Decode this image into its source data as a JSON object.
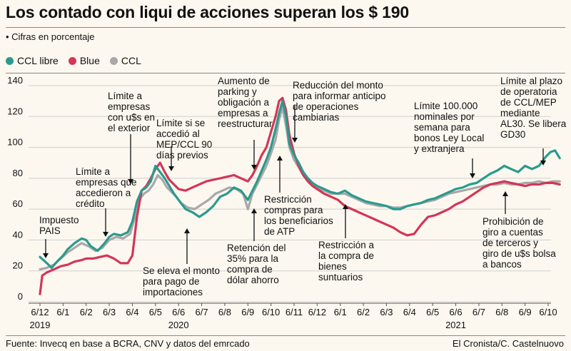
{
  "title": "Los contado con liqui de acciones superan los $ 190",
  "subtitle": "• Cifras en porcentaje",
  "legend": [
    {
      "name": "CCL libre",
      "color": "#2a9a8e"
    },
    {
      "name": "Blue",
      "color": "#d43558"
    },
    {
      "name": "CCL",
      "color": "#a8a8a8"
    }
  ],
  "footer": {
    "source": "Fuente: Invecq en base a BCRA, CNV y datos del emrcado",
    "credit": "El Cronista/C. Castelnuovo"
  },
  "chart_data": {
    "type": "line",
    "title": "Los contado con liqui de acciones superan los $ 190",
    "xlabel": "",
    "ylabel": "Cifras en porcentaje",
    "ylim": [
      0,
      140
    ],
    "yticks": [
      0,
      20,
      40,
      60,
      80,
      100,
      120,
      140
    ],
    "categories": [
      "6/12",
      "6/1",
      "6/2",
      "6/3",
      "6/4",
      "6/5",
      "6/6",
      "6/7",
      "6/8",
      "6/9",
      "6/10",
      "6/11",
      "6/12",
      "6/1",
      "6/2",
      "6/3",
      "6/4",
      "6/5",
      "6/6",
      "6/7",
      "6/8",
      "6/9",
      "6/10"
    ],
    "years": [
      {
        "label": "2019",
        "index": 0
      },
      {
        "label": "2020",
        "index": 6
      },
      {
        "label": "2021",
        "index": 18
      }
    ],
    "series": [
      {
        "name": "CCL libre",
        "color": "#2a9a8e",
        "points": [
          [
            0,
            29
          ],
          [
            0.3,
            25
          ],
          [
            0.5,
            22
          ],
          [
            0.8,
            27
          ],
          [
            1.0,
            30
          ],
          [
            1.2,
            34
          ],
          [
            1.5,
            38
          ],
          [
            1.8,
            41
          ],
          [
            2.0,
            40
          ],
          [
            2.2,
            36
          ],
          [
            2.5,
            33
          ],
          [
            2.8,
            38
          ],
          [
            3.0,
            42
          ],
          [
            3.2,
            44
          ],
          [
            3.5,
            43
          ],
          [
            3.8,
            45
          ],
          [
            4.0,
            52
          ],
          [
            4.2,
            65
          ],
          [
            4.4,
            72
          ],
          [
            4.6,
            74
          ],
          [
            4.8,
            78
          ],
          [
            5.0,
            88
          ],
          [
            5.2,
            84
          ],
          [
            5.4,
            80
          ],
          [
            5.6,
            75
          ],
          [
            5.8,
            70
          ],
          [
            6.0,
            66
          ],
          [
            6.3,
            60
          ],
          [
            6.6,
            58
          ],
          [
            6.9,
            55
          ],
          [
            7.2,
            58
          ],
          [
            7.5,
            62
          ],
          [
            7.8,
            68
          ],
          [
            8.1,
            70
          ],
          [
            8.4,
            74
          ],
          [
            8.7,
            72
          ],
          [
            9.0,
            66
          ],
          [
            9.2,
            72
          ],
          [
            9.4,
            78
          ],
          [
            9.6,
            85
          ],
          [
            9.8,
            92
          ],
          [
            10.0,
            100
          ],
          [
            10.2,
            112
          ],
          [
            10.35,
            122
          ],
          [
            10.5,
            130
          ],
          [
            10.65,
            120
          ],
          [
            10.8,
            102
          ],
          [
            11.0,
            95
          ],
          [
            11.2,
            90
          ],
          [
            11.4,
            84
          ],
          [
            11.6,
            80
          ],
          [
            11.8,
            77
          ],
          [
            12.0,
            75
          ],
          [
            12.3,
            73
          ],
          [
            12.6,
            71
          ],
          [
            12.9,
            70
          ],
          [
            13.2,
            72
          ],
          [
            13.5,
            69
          ],
          [
            13.8,
            67
          ],
          [
            14.1,
            65
          ],
          [
            14.4,
            64
          ],
          [
            14.7,
            63
          ],
          [
            15.0,
            62
          ],
          [
            15.3,
            60
          ],
          [
            15.6,
            60
          ],
          [
            15.9,
            62
          ],
          [
            16.2,
            63
          ],
          [
            16.5,
            64
          ],
          [
            16.8,
            66
          ],
          [
            17.1,
            67
          ],
          [
            17.4,
            69
          ],
          [
            17.7,
            71
          ],
          [
            18.0,
            73
          ],
          [
            18.3,
            74
          ],
          [
            18.6,
            76
          ],
          [
            18.9,
            77
          ],
          [
            19.2,
            80
          ],
          [
            19.5,
            83
          ],
          [
            19.8,
            85
          ],
          [
            20.1,
            88
          ],
          [
            20.4,
            86
          ],
          [
            20.7,
            84
          ],
          [
            21.0,
            88
          ],
          [
            21.3,
            86
          ],
          [
            21.6,
            88
          ],
          [
            21.9,
            94
          ],
          [
            22.1,
            97
          ],
          [
            22.3,
            98
          ],
          [
            22.5,
            93
          ]
        ]
      },
      {
        "name": "Blue",
        "color": "#d43558",
        "points": [
          [
            0,
            5
          ],
          [
            0.1,
            17
          ],
          [
            0.3,
            19
          ],
          [
            0.6,
            21
          ],
          [
            0.9,
            23
          ],
          [
            1.2,
            24
          ],
          [
            1.5,
            26
          ],
          [
            1.8,
            27
          ],
          [
            2.0,
            28
          ],
          [
            2.3,
            28
          ],
          [
            2.6,
            29
          ],
          [
            2.9,
            30
          ],
          [
            3.2,
            28
          ],
          [
            3.5,
            25
          ],
          [
            3.8,
            25
          ],
          [
            4.0,
            30
          ],
          [
            4.2,
            55
          ],
          [
            4.4,
            72
          ],
          [
            4.6,
            75
          ],
          [
            4.8,
            80
          ],
          [
            5.0,
            86
          ],
          [
            5.2,
            90
          ],
          [
            5.4,
            84
          ],
          [
            5.6,
            79
          ],
          [
            5.8,
            76
          ],
          [
            6.0,
            73
          ],
          [
            6.3,
            72
          ],
          [
            6.6,
            74
          ],
          [
            6.9,
            76
          ],
          [
            7.2,
            78
          ],
          [
            7.5,
            79
          ],
          [
            7.8,
            80
          ],
          [
            8.1,
            81
          ],
          [
            8.4,
            82
          ],
          [
            8.7,
            80
          ],
          [
            9.0,
            78
          ],
          [
            9.2,
            82
          ],
          [
            9.4,
            88
          ],
          [
            9.6,
            95
          ],
          [
            9.8,
            100
          ],
          [
            10.0,
            110
          ],
          [
            10.2,
            120
          ],
          [
            10.35,
            130
          ],
          [
            10.5,
            132
          ],
          [
            10.65,
            124
          ],
          [
            10.8,
            108
          ],
          [
            11.0,
            96
          ],
          [
            11.2,
            88
          ],
          [
            11.4,
            82
          ],
          [
            11.6,
            78
          ],
          [
            11.8,
            75
          ],
          [
            12.0,
            73
          ],
          [
            12.3,
            70
          ],
          [
            12.6,
            68
          ],
          [
            12.9,
            66
          ],
          [
            13.2,
            62
          ],
          [
            13.5,
            60
          ],
          [
            13.8,
            58
          ],
          [
            14.1,
            56
          ],
          [
            14.4,
            54
          ],
          [
            14.7,
            52
          ],
          [
            15.0,
            50
          ],
          [
            15.3,
            48
          ],
          [
            15.6,
            45
          ],
          [
            15.9,
            43
          ],
          [
            16.2,
            44
          ],
          [
            16.5,
            50
          ],
          [
            16.8,
            55
          ],
          [
            17.1,
            56
          ],
          [
            17.4,
            58
          ],
          [
            17.7,
            60
          ],
          [
            18.0,
            63
          ],
          [
            18.3,
            65
          ],
          [
            18.6,
            68
          ],
          [
            18.9,
            71
          ],
          [
            19.2,
            74
          ],
          [
            19.5,
            76
          ],
          [
            19.8,
            77
          ],
          [
            20.1,
            78
          ],
          [
            20.4,
            77
          ],
          [
            20.7,
            76
          ],
          [
            21.0,
            75
          ],
          [
            21.3,
            76
          ],
          [
            21.6,
            76
          ],
          [
            21.9,
            77
          ],
          [
            22.2,
            77
          ],
          [
            22.5,
            76
          ]
        ]
      },
      {
        "name": "CCL",
        "color": "#a8a8a8",
        "points": [
          [
            0,
            21
          ],
          [
            0.3,
            22
          ],
          [
            0.6,
            24
          ],
          [
            0.9,
            28
          ],
          [
            1.2,
            32
          ],
          [
            1.5,
            35
          ],
          [
            1.8,
            38
          ],
          [
            2.1,
            36
          ],
          [
            2.4,
            33
          ],
          [
            2.7,
            35
          ],
          [
            3.0,
            40
          ],
          [
            3.3,
            42
          ],
          [
            3.6,
            41
          ],
          [
            3.9,
            44
          ],
          [
            4.1,
            54
          ],
          [
            4.3,
            66
          ],
          [
            4.5,
            70
          ],
          [
            4.7,
            72
          ],
          [
            4.9,
            76
          ],
          [
            5.1,
            82
          ],
          [
            5.3,
            79
          ],
          [
            5.5,
            74
          ],
          [
            5.7,
            71
          ],
          [
            5.9,
            68
          ],
          [
            6.1,
            64
          ],
          [
            6.4,
            61
          ],
          [
            6.7,
            60
          ],
          [
            7.0,
            63
          ],
          [
            7.3,
            66
          ],
          [
            7.6,
            70
          ],
          [
            7.9,
            72
          ],
          [
            8.2,
            74
          ],
          [
            8.5,
            73
          ],
          [
            8.8,
            70
          ],
          [
            9.0,
            60
          ],
          [
            9.2,
            70
          ],
          [
            9.4,
            76
          ],
          [
            9.6,
            82
          ],
          [
            9.8,
            88
          ],
          [
            10.0,
            96
          ],
          [
            10.2,
            105
          ],
          [
            10.35,
            118
          ],
          [
            10.5,
            126
          ],
          [
            10.65,
            114
          ],
          [
            10.8,
            100
          ],
          [
            11.0,
            92
          ],
          [
            11.2,
            87
          ],
          [
            11.4,
            82
          ],
          [
            11.6,
            78
          ],
          [
            11.8,
            76
          ],
          [
            12.0,
            74
          ],
          [
            12.3,
            72
          ],
          [
            12.6,
            70
          ],
          [
            12.9,
            70
          ],
          [
            13.2,
            70
          ],
          [
            13.5,
            68
          ],
          [
            13.8,
            66
          ],
          [
            14.1,
            64
          ],
          [
            14.4,
            63
          ],
          [
            14.7,
            62
          ],
          [
            15.0,
            62
          ],
          [
            15.3,
            61
          ],
          [
            15.6,
            61
          ],
          [
            15.9,
            62
          ],
          [
            16.2,
            63
          ],
          [
            16.5,
            64
          ],
          [
            16.8,
            65
          ],
          [
            17.1,
            66
          ],
          [
            17.4,
            68
          ],
          [
            17.7,
            70
          ],
          [
            18.0,
            71
          ],
          [
            18.3,
            72
          ],
          [
            18.6,
            73
          ],
          [
            18.9,
            74
          ],
          [
            19.2,
            75
          ],
          [
            19.5,
            76
          ],
          [
            19.8,
            76
          ],
          [
            20.1,
            77
          ],
          [
            20.4,
            76
          ],
          [
            20.7,
            76
          ],
          [
            21.0,
            77
          ],
          [
            21.3,
            77
          ],
          [
            21.6,
            78
          ],
          [
            21.9,
            77
          ],
          [
            22.2,
            78
          ],
          [
            22.5,
            78
          ]
        ]
      }
    ],
    "annotations": [
      {
        "text": [
          "Impuesto",
          "PAIS"
        ],
        "x": 0.5,
        "y": 28
      },
      {
        "text": [
          "Límite a",
          "empresas que",
          "accedieron a",
          "crédito"
        ],
        "x": 2.0,
        "y": 42
      },
      {
        "text": [
          "Límite a",
          "empresas",
          "con u$s en",
          "el exterior"
        ],
        "x": 3.6,
        "y": 46
      },
      {
        "text": [
          "Límite si se",
          "accedió al",
          "MEP/CCL 90",
          "días previos"
        ],
        "x": 5.6,
        "y": 76
      },
      {
        "text": [
          "Se eleva el monto",
          "para pago de",
          "importaciones"
        ],
        "x": 6.3,
        "y": 60
      },
      {
        "text": [
          "Aumento de",
          "parking y",
          "obligación a",
          "empresas a",
          "reestructurar"
        ],
        "x": 9.1,
        "y": 76
      },
      {
        "text": [
          "Retención del",
          "35% para la",
          "compra de",
          "dólar ahorro"
        ],
        "x": 9.1,
        "y": 60
      },
      {
        "text": [
          "Restricción",
          "compras para",
          "los beneficiarios",
          "de ATP"
        ],
        "x": 10.2,
        "y": 110
      },
      {
        "text": [
          "Reducción del monto",
          "para informar anticipo",
          "de operaciones",
          "cambiarias"
        ],
        "x": 10.7,
        "y": 120
      },
      {
        "text": [
          "Restricción a",
          "la compra de",
          "bienes",
          "suntuarios"
        ],
        "x": 13.2,
        "y": 70
      },
      {
        "text": [
          "Límite 100.000",
          "nominales por",
          "semana para",
          "bonos Ley Local",
          "y extranjera"
        ],
        "x": 19.8,
        "y": 85
      },
      {
        "text": [
          "Límite al plazo",
          "de operatoria",
          "de CCL/MEP",
          "mediante",
          "AL30. Se libera",
          "GD30"
        ],
        "x": 22.0,
        "y": 96
      },
      {
        "text": [
          "Prohibición de",
          "giro a cuentas",
          "de terceros y",
          "giro de u$s bolsa",
          "a bancos"
        ],
        "x": 20.6,
        "y": 78
      }
    ]
  }
}
